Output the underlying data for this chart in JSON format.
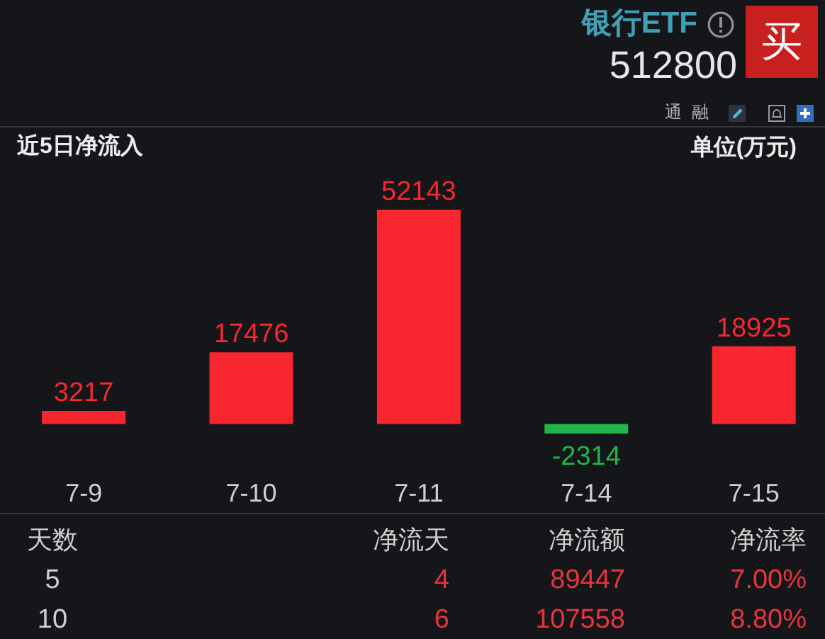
{
  "chart_data": [
    {
      "type": "other",
      "title": "银行ETF",
      "subtitle": "512800",
      "annotations": [
        "买",
        "通",
        "融"
      ]
    },
    {
      "type": "bar",
      "title": "近5日净流入",
      "annotations": [
        "单位(万元)"
      ],
      "categories": [
        "7-9",
        "7-10",
        "7-11",
        "7-14",
        "7-15"
      ],
      "values": [
        3217,
        17476,
        52143,
        -2314,
        18925
      ],
      "colors": [
        "#f7262f",
        "#f7262f",
        "#f7262f",
        "#1fb54a",
        "#f7262f"
      ],
      "data_labels": true
    },
    {
      "type": "other",
      "annotations": [
        "天数",
        "净流天",
        "净流额",
        "净流率",
        "5",
        "4",
        "89447",
        "7.00%",
        "10",
        "6",
        "107558",
        "8.80%"
      ]
    }
  ]
}
